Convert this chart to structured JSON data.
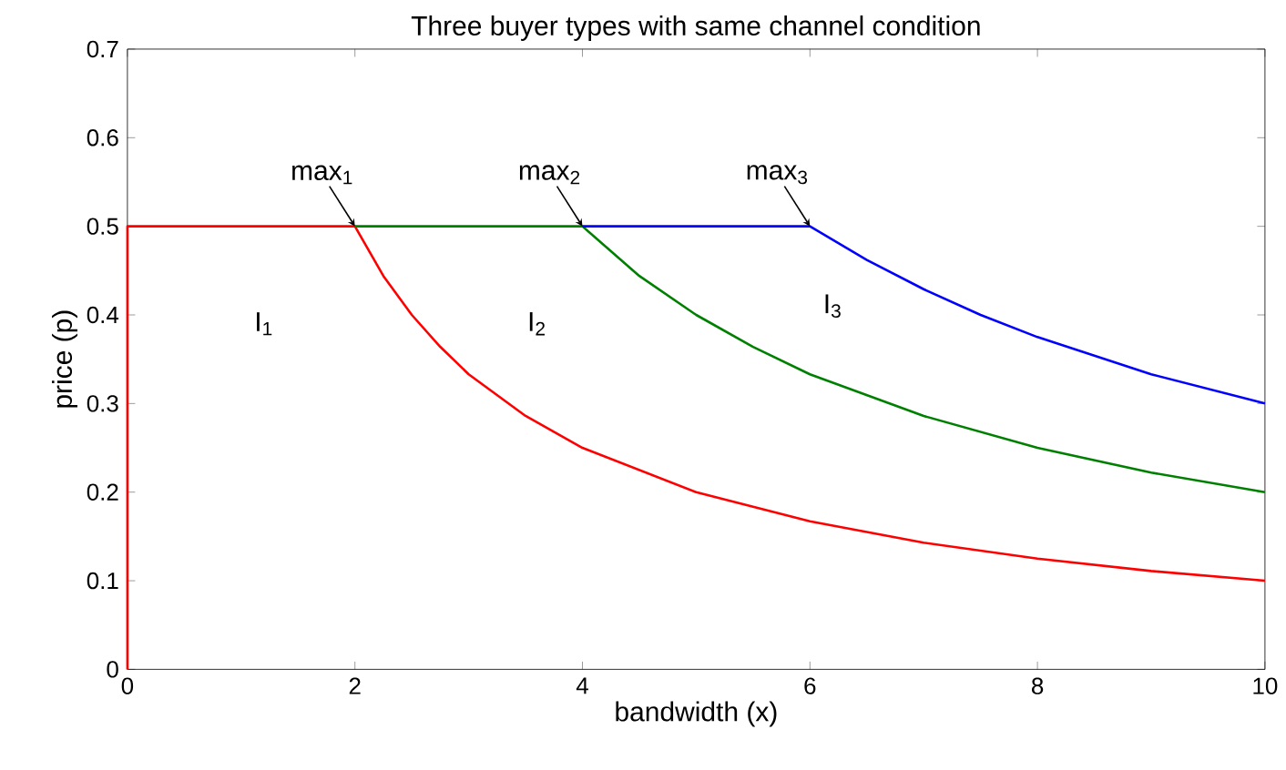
{
  "chart_data": {
    "type": "line",
    "title": "Three buyer types with same channel condition",
    "xlabel": "bandwidth (x)",
    "ylabel": "price (p)",
    "xlim": [
      0,
      10
    ],
    "ylim": [
      0,
      0.7
    ],
    "xticks": [
      0,
      2,
      4,
      6,
      8,
      10
    ],
    "yticks": [
      0,
      0.1,
      0.2,
      0.3,
      0.4,
      0.5,
      0.6,
      0.7
    ],
    "grid": false,
    "marker": "none",
    "line_style": "solid",
    "series": [
      {
        "color": "#ff0000",
        "x": [
          0,
          0,
          2,
          2.25,
          2.5,
          2.75,
          3,
          3.5,
          4,
          5,
          6,
          7,
          8,
          9,
          10
        ],
        "values": [
          0,
          0.5,
          0.5,
          0.444,
          0.4,
          0.364,
          0.333,
          0.286,
          0.25,
          0.2,
          0.167,
          0.143,
          0.125,
          0.111,
          0.1
        ]
      },
      {
        "color": "#008000",
        "x": [
          2,
          4,
          4.5,
          5,
          5.5,
          6,
          7,
          8,
          9,
          10
        ],
        "values": [
          0.5,
          0.5,
          0.444,
          0.4,
          0.364,
          0.333,
          0.286,
          0.25,
          0.222,
          0.2
        ]
      },
      {
        "color": "#0000ff",
        "x": [
          4,
          6,
          6.5,
          7,
          7.5,
          8,
          9,
          10
        ],
        "values": [
          0.5,
          0.5,
          0.462,
          0.429,
          0.4,
          0.375,
          0.333,
          0.3
        ]
      }
    ],
    "annotations": [
      {
        "text": "max$_{1}$",
        "x": 2,
        "y": 0.5
      },
      {
        "text": "max$_{2}$",
        "x": 4,
        "y": 0.5
      },
      {
        "text": "max$_{3}$",
        "x": 6,
        "y": 0.5
      },
      "I$_{1}$",
      "I$_{2}$",
      "I$_{3}$"
    ]
  }
}
